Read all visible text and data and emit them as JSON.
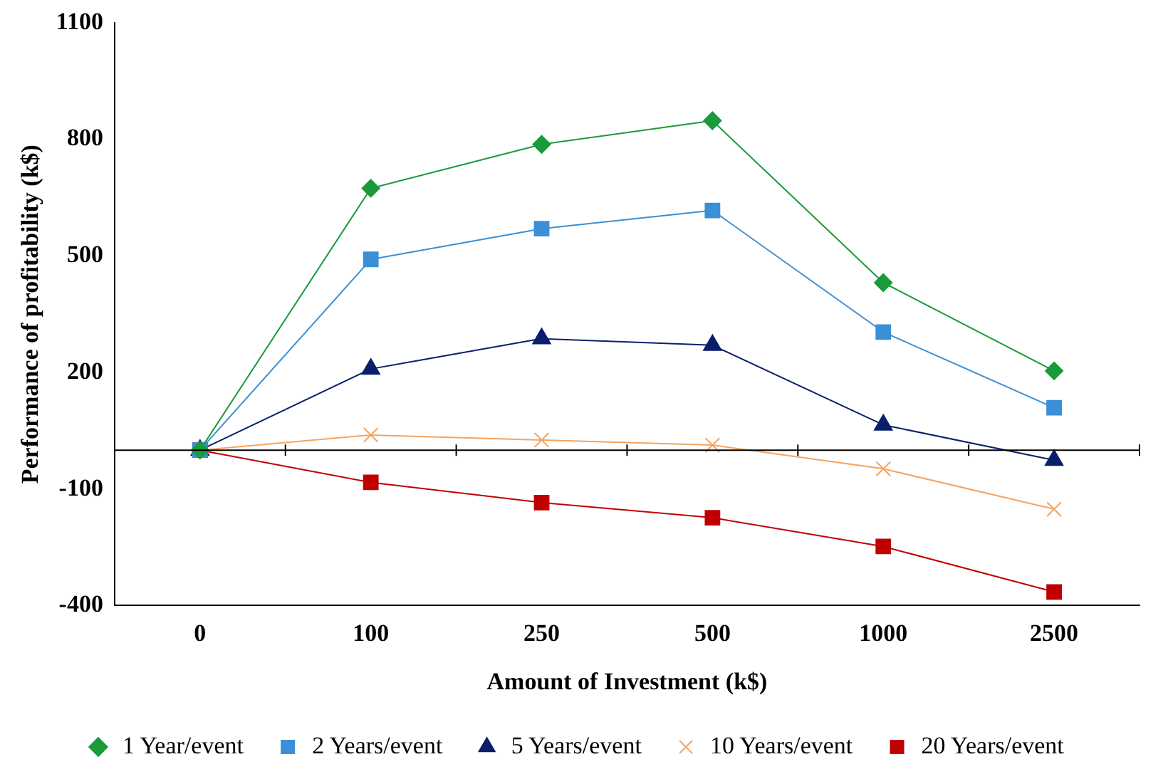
{
  "chart_data": {
    "type": "line",
    "xlabel": "Amount of Investment (k$)",
    "ylabel": "Performance of profitability (k$)",
    "categories": [
      "0",
      "100",
      "250",
      "500",
      "1000",
      "2500"
    ],
    "ylim": [
      -400,
      1100
    ],
    "yticks": [
      -400,
      -100,
      200,
      500,
      800,
      1100
    ],
    "grid": false,
    "legend": "bottom",
    "ref_lines": [
      {
        "axis": "y",
        "value": 0,
        "color": "#000000"
      }
    ],
    "series": [
      {
        "name": "1 Year/event",
        "color": "#1a9a3a",
        "marker": "diamond",
        "values": [
          0,
          674,
          787,
          848,
          431,
          204
        ]
      },
      {
        "name": "2 Years/event",
        "color": "#3a8fd6",
        "marker": "square",
        "values": [
          0,
          491,
          570,
          617,
          304,
          109
        ]
      },
      {
        "name": "5 Years/event",
        "color": "#0a1f6b",
        "marker": "triangle",
        "values": [
          0,
          209,
          287,
          270,
          65,
          -26
        ]
      },
      {
        "name": "10 Years/event",
        "color": "#f4a460",
        "marker": "cross",
        "values": [
          0,
          39,
          26,
          13,
          -48,
          -152
        ]
      },
      {
        "name": "20 Years/event",
        "color": "#c00000",
        "marker": "square",
        "values": [
          0,
          -83,
          -135,
          -174,
          -248,
          -365
        ]
      }
    ]
  }
}
